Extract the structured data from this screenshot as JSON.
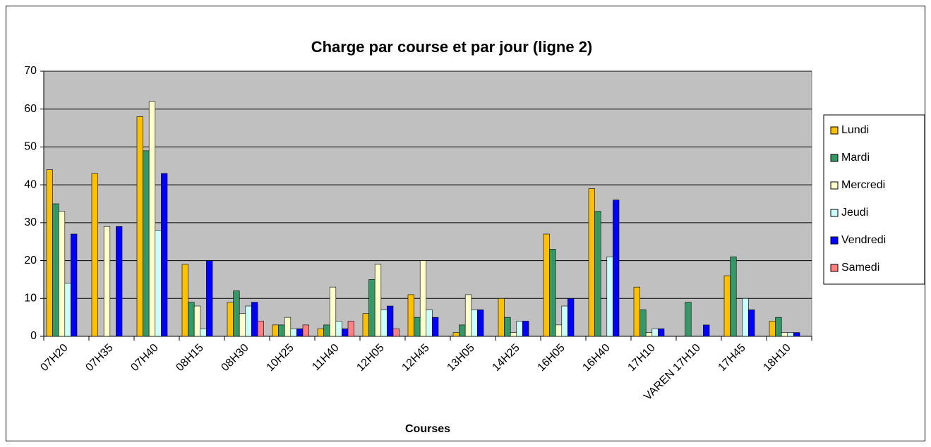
{
  "chart_data": {
    "type": "bar",
    "title": "Charge par course et par jour (ligne 2)",
    "x_label": "Courses",
    "categories": [
      "07H20",
      "07H35",
      "07H40",
      "08H15",
      "08H30",
      "10H25",
      "11H40",
      "12H05",
      "12H45",
      "13H05",
      "14H25",
      "16H05",
      "16H40",
      "17H10",
      "VAREN 17H10",
      "17H45",
      "18H10"
    ],
    "series": [
      {
        "name": "Lundi",
        "color": "#FFC000",
        "values": [
          44,
          43,
          58,
          19,
          9,
          3,
          2,
          6,
          11,
          1,
          10,
          27,
          39,
          13,
          0,
          16,
          4
        ]
      },
      {
        "name": "Mardi",
        "color": "#339966",
        "values": [
          35,
          0,
          49,
          9,
          12,
          3,
          3,
          15,
          5,
          3,
          5,
          23,
          33,
          7,
          9,
          21,
          5
        ]
      },
      {
        "name": "Mercredi",
        "color": "#FFFFCC",
        "values": [
          33,
          29,
          62,
          8,
          6,
          5,
          13,
          19,
          20,
          11,
          1,
          3,
          0,
          1,
          0,
          0,
          1
        ]
      },
      {
        "name": "Jeudi",
        "color": "#CCFFFF",
        "values": [
          14,
          0,
          28,
          2,
          8,
          2,
          4,
          7,
          7,
          7,
          4,
          8,
          21,
          2,
          0,
          10,
          1
        ]
      },
      {
        "name": "Vendredi",
        "color": "#0000FF",
        "values": [
          27,
          29,
          43,
          20,
          9,
          2,
          2,
          8,
          5,
          7,
          4,
          10,
          36,
          2,
          3,
          7,
          1
        ]
      },
      {
        "name": "Samedi",
        "color": "#FF8080",
        "values": [
          0,
          0,
          0,
          0,
          4,
          3,
          4,
          2,
          0,
          0,
          0,
          0,
          0,
          0,
          0,
          0,
          0
        ]
      }
    ],
    "ylim": [
      0,
      70
    ],
    "yticks": [
      0,
      10,
      20,
      30,
      40,
      50,
      60,
      70
    ],
    "grid": true,
    "legend": "right"
  }
}
